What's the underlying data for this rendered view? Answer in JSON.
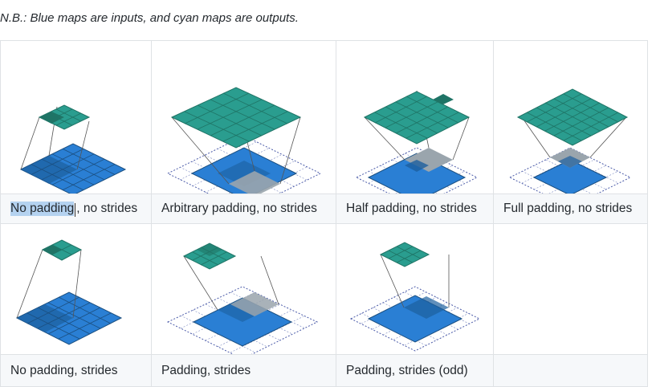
{
  "note": "N.B.: Blue maps are inputs, and cyan maps are outputs.",
  "captions": {
    "no_padding_no_strides_selected": "No padding",
    "no_padding_no_strides_rest": ", no strides",
    "arbitrary_padding_no_strides": "Arbitrary padding, no strides",
    "half_padding_no_strides": "Half padding, no strides",
    "full_padding_no_strides": "Full padding, no strides",
    "no_padding_strides": "No padding, strides",
    "padding_strides": "Padding, strides",
    "padding_strides_odd": "Padding, strides (odd)",
    "empty": ""
  },
  "colors": {
    "input_blue": "#2a7fd4",
    "input_blue_dark": "#1d5f9e",
    "output_cyan": "#2a9d8f",
    "output_cyan_dark": "#1f7466",
    "kernel_gray": "#9aa5ad",
    "padding_dots": "#4a5aa8",
    "selection": "#b4d2f0"
  }
}
